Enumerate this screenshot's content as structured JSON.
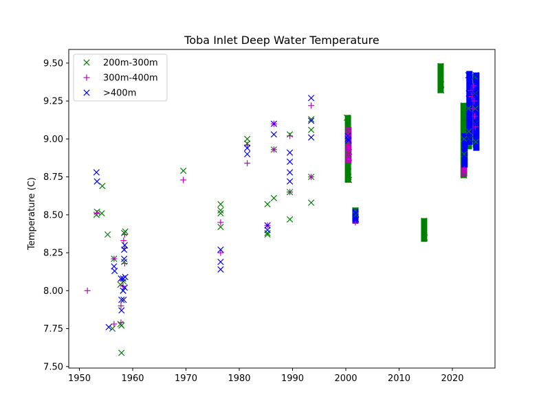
{
  "chart_data": {
    "type": "scatter",
    "title": "Toba Inlet Deep Water Temperature",
    "xlabel": "",
    "ylabel": "Temperature (C)",
    "xlim": [
      1948,
      2028
    ],
    "ylim": [
      7.49,
      9.59
    ],
    "xticks": [
      "1950",
      "1960",
      "1970",
      "1980",
      "1990",
      "2000",
      "2010",
      "2020"
    ],
    "yticks": [
      "7.50",
      "7.75",
      "8.00",
      "8.25",
      "8.50",
      "8.75",
      "9.00",
      "9.25",
      "9.50"
    ],
    "grid": false,
    "legend_position": "upper-left",
    "series": [
      {
        "name": "200m-300m",
        "marker": "x",
        "color": "#008000",
        "points": [
          [
            1953.2,
            8.5
          ],
          [
            1953.3,
            8.52
          ],
          [
            1954.2,
            8.51
          ],
          [
            1954.3,
            8.69
          ],
          [
            1955.3,
            8.37
          ],
          [
            1956.2,
            7.75
          ],
          [
            1956.5,
            8.21
          ],
          [
            1957.7,
            7.78
          ],
          [
            1957.7,
            8.04
          ],
          [
            1957.9,
            7.59
          ],
          [
            1957.9,
            7.77
          ],
          [
            1958.2,
            8.0
          ],
          [
            1958.3,
            8.06
          ],
          [
            1958.4,
            8.38
          ],
          [
            1958.4,
            8.19
          ],
          [
            1958.6,
            8.39
          ],
          [
            1969.5,
            8.79
          ],
          [
            1976.5,
            8.57
          ],
          [
            1976.5,
            8.53
          ],
          [
            1976.5,
            8.51
          ],
          [
            1976.5,
            8.42
          ],
          [
            1981.5,
            9.0
          ],
          [
            1981.5,
            8.97
          ],
          [
            1985.3,
            8.57
          ],
          [
            1985.3,
            8.38
          ],
          [
            1985.3,
            8.37
          ],
          [
            1986.5,
            8.61
          ],
          [
            1986.5,
            8.93
          ],
          [
            1989.5,
            9.03
          ],
          [
            1989.5,
            8.65
          ],
          [
            1989.5,
            8.47
          ],
          [
            1993.5,
            9.13
          ],
          [
            1993.5,
            9.06
          ],
          [
            1993.5,
            8.58
          ],
          [
            1993.5,
            8.75
          ],
          [
            2000.2,
            9.14
          ],
          [
            2000.4,
            9.1
          ],
          [
            2000.4,
            9.05
          ],
          [
            2000.4,
            8.98
          ],
          [
            2000.5,
            8.9
          ],
          [
            2000.5,
            8.82
          ],
          [
            2000.5,
            8.75
          ],
          [
            2000.6,
            8.73
          ],
          [
            2001.8,
            8.53
          ],
          [
            2001.9,
            8.5
          ],
          [
            2014.7,
            8.46
          ],
          [
            2014.7,
            8.4
          ],
          [
            2014.8,
            8.35
          ],
          [
            2017.8,
            9.48
          ],
          [
            2017.8,
            9.42
          ],
          [
            2017.9,
            9.36
          ],
          [
            2017.9,
            9.32
          ],
          [
            2022.1,
            9.22
          ],
          [
            2022.1,
            9.1
          ],
          [
            2022.2,
            9.0
          ],
          [
            2022.2,
            8.9
          ],
          [
            2022.2,
            8.76
          ],
          [
            2023.0,
            9.2
          ],
          [
            2023.1,
            9.05
          ],
          [
            2023.2,
            9.0
          ],
          [
            2024.2,
            9.41
          ],
          [
            2024.3,
            9.3
          ],
          [
            2024.3,
            9.2
          ],
          [
            2024.4,
            9.1
          ],
          [
            2024.4,
            8.98
          ]
        ]
      },
      {
        "name": "300m-400m",
        "marker": "+",
        "color": "#bf00bf",
        "points": [
          [
            1951.5,
            8.0
          ],
          [
            1953.3,
            8.51
          ],
          [
            1956.5,
            8.21
          ],
          [
            1956.5,
            7.78
          ],
          [
            1957.8,
            7.79
          ],
          [
            1957.8,
            7.9
          ],
          [
            1958.0,
            8.07
          ],
          [
            1958.2,
            8.03
          ],
          [
            1958.3,
            8.33
          ],
          [
            1958.5,
            8.18
          ],
          [
            1958.5,
            8.28
          ],
          [
            1958.5,
            8.37
          ],
          [
            1969.5,
            8.73
          ],
          [
            1976.5,
            8.45
          ],
          [
            1976.5,
            8.25
          ],
          [
            1981.5,
            8.96
          ],
          [
            1981.5,
            8.84
          ],
          [
            1985.3,
            8.43
          ],
          [
            1986.5,
            9.1
          ],
          [
            1986.5,
            8.93
          ],
          [
            1989.5,
            9.02
          ],
          [
            1989.5,
            8.65
          ],
          [
            1993.5,
            9.22
          ],
          [
            1993.5,
            8.75
          ],
          [
            2000.5,
            9.05
          ],
          [
            2000.5,
            8.98
          ],
          [
            2000.6,
            8.93
          ],
          [
            2000.6,
            8.9
          ],
          [
            2000.6,
            8.86
          ],
          [
            2001.8,
            8.45
          ],
          [
            2022.2,
            8.8
          ],
          [
            2022.2,
            8.77
          ],
          [
            2023.5,
            9.32
          ],
          [
            2023.6,
            9.28
          ],
          [
            2023.8,
            9.2
          ],
          [
            2024.0,
            9.35
          ],
          [
            2024.1,
            9.25
          ],
          [
            2024.2,
            9.15
          ],
          [
            2024.3,
            9.08
          ]
        ]
      },
      {
        "name": ">400m",
        "marker": "x",
        "color": "#0000ff",
        "points": [
          [
            1953.2,
            8.78
          ],
          [
            1953.3,
            8.72
          ],
          [
            1955.5,
            7.76
          ],
          [
            1956.5,
            8.16
          ],
          [
            1956.6,
            8.13
          ],
          [
            1957.8,
            8.08
          ],
          [
            1957.9,
            7.94
          ],
          [
            1957.9,
            7.87
          ],
          [
            1958.2,
            8.08
          ],
          [
            1958.2,
            8.0
          ],
          [
            1958.3,
            7.94
          ],
          [
            1958.4,
            8.21
          ],
          [
            1958.4,
            8.27
          ],
          [
            1958.5,
            8.3
          ],
          [
            1958.5,
            8.02
          ],
          [
            1958.6,
            8.09
          ],
          [
            1976.5,
            8.27
          ],
          [
            1976.5,
            8.19
          ],
          [
            1976.5,
            8.14
          ],
          [
            1981.5,
            8.94
          ],
          [
            1981.5,
            8.9
          ],
          [
            1985.3,
            8.43
          ],
          [
            1985.3,
            8.4
          ],
          [
            1986.5,
            9.03
          ],
          [
            1986.5,
            9.1
          ],
          [
            1989.5,
            8.91
          ],
          [
            1989.5,
            8.85
          ],
          [
            1989.5,
            8.78
          ],
          [
            1989.5,
            8.72
          ],
          [
            1993.5,
            9.27
          ],
          [
            1993.5,
            9.12
          ],
          [
            1993.5,
            9.01
          ],
          [
            2000.4,
            9.02
          ],
          [
            2000.4,
            9.0
          ],
          [
            2000.5,
            8.99
          ],
          [
            2001.8,
            8.51
          ],
          [
            2001.9,
            8.47
          ],
          [
            2022.3,
            8.88
          ],
          [
            2022.4,
            8.97
          ],
          [
            2023.0,
            9.42
          ],
          [
            2023.1,
            9.3
          ],
          [
            2023.2,
            9.1
          ],
          [
            2023.3,
            9.0
          ],
          [
            2024.4,
            9.42
          ],
          [
            2024.4,
            9.3
          ],
          [
            2024.5,
            9.1
          ],
          [
            2024.5,
            8.95
          ]
        ]
      }
    ],
    "runs": [
      {
        "series": 0,
        "x": 2000.4,
        "y_from": 8.73,
        "y_to": 9.14
      },
      {
        "series": 0,
        "x": 2001.8,
        "y_from": 8.48,
        "y_to": 8.53
      },
      {
        "series": 0,
        "x": 2014.7,
        "y_from": 8.34,
        "y_to": 8.46
      },
      {
        "series": 0,
        "x": 2017.8,
        "y_from": 9.32,
        "y_to": 9.48
      },
      {
        "series": 0,
        "x": 2022.1,
        "y_from": 8.76,
        "y_to": 9.22
      },
      {
        "series": 0,
        "x": 2023.1,
        "y_from": 8.95,
        "y_to": 9.22
      },
      {
        "series": 0,
        "x": 2024.4,
        "y_from": 8.96,
        "y_to": 9.41
      },
      {
        "series": 1,
        "x": 2000.5,
        "y_from": 8.86,
        "y_to": 9.06
      },
      {
        "series": 1,
        "x": 2022.2,
        "y_from": 8.77,
        "y_to": 8.82
      },
      {
        "series": 1,
        "x": 2023.7,
        "y_from": 9.05,
        "y_to": 9.35
      },
      {
        "series": 1,
        "x": 2024.1,
        "y_from": 9.05,
        "y_to": 9.35
      },
      {
        "series": 2,
        "x": 2001.8,
        "y_from": 8.46,
        "y_to": 8.52
      },
      {
        "series": 2,
        "x": 2022.3,
        "y_from": 8.83,
        "y_to": 9.02
      },
      {
        "series": 2,
        "x": 2023.2,
        "y_from": 8.98,
        "y_to": 9.43
      },
      {
        "series": 2,
        "x": 2024.5,
        "y_from": 8.94,
        "y_to": 9.42
      }
    ]
  }
}
